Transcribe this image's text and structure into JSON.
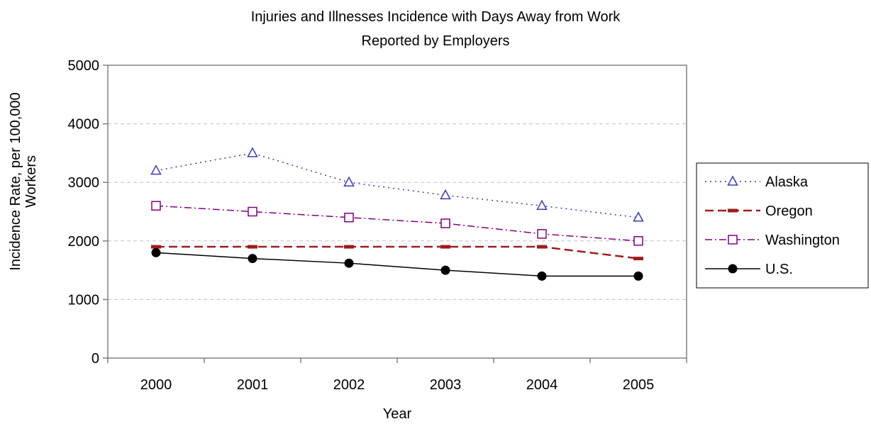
{
  "chart_data": {
    "type": "line",
    "title_lines": [
      "Injuries and Illnesses Incidence with Days Away from Work",
      "Reported by Employers"
    ],
    "xlabel": "Year",
    "ylabel_lines": [
      "Incidence Rate, per 100,000",
      "Workers"
    ],
    "categories": [
      "2000",
      "2001",
      "2002",
      "2003",
      "2004",
      "2005"
    ],
    "ylim": [
      0,
      5000
    ],
    "yticks": [
      0,
      1000,
      2000,
      3000,
      4000,
      5000
    ],
    "grid": "horizontal dashed",
    "legend_position": "right",
    "series": [
      {
        "name": "Alaska",
        "values": [
          3200,
          3500,
          3000,
          2780,
          2600,
          2400
        ],
        "color": "#3a3ac0",
        "marker": "triangle",
        "dash": "dotted"
      },
      {
        "name": "Oregon",
        "values": [
          1900,
          1900,
          1900,
          1900,
          1900,
          1700
        ],
        "color": "#a01c1c",
        "marker": "dash",
        "dash": "dashed"
      },
      {
        "name": "Washington",
        "values": [
          2600,
          2500,
          2400,
          2300,
          2120,
          2000
        ],
        "color": "#800080",
        "marker": "square",
        "dash": "dashdot"
      },
      {
        "name": "U.S.",
        "values": [
          1800,
          1700,
          1620,
          1500,
          1400,
          1400
        ],
        "color": "#000000",
        "marker": "circle",
        "dash": "solid"
      }
    ]
  }
}
